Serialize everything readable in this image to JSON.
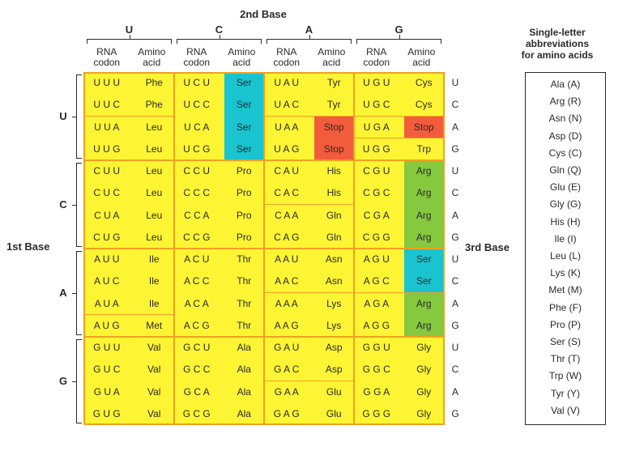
{
  "title": "2nd Base",
  "second_base": [
    "U",
    "C",
    "A",
    "G"
  ],
  "col_headers": [
    {
      "codon": "RNA\ncodon",
      "amino": "Amino\nacid"
    },
    {
      "codon": "RNA\ncodon",
      "amino": "Amino\nacid"
    },
    {
      "codon": "RNA\ncodon",
      "amino": "Amino\nacid"
    },
    {
      "codon": "RNA\ncodon",
      "amino": "Amino\nacid"
    }
  ],
  "first_base_label": "1st Base",
  "third_base_label": "3rd Base",
  "first_base": [
    "U",
    "C",
    "A",
    "G"
  ],
  "third_base": [
    "U",
    "C",
    "A",
    "G",
    "U",
    "C",
    "A",
    "G",
    "U",
    "C",
    "A",
    "G",
    "U",
    "C",
    "A",
    "G"
  ],
  "rows": [
    [
      [
        "U U U",
        "Phe"
      ],
      [
        "U C U",
        "Ser"
      ],
      [
        "U A U",
        "Tyr"
      ],
      [
        "U G U",
        "Cys"
      ]
    ],
    [
      [
        "U U C",
        "Phe"
      ],
      [
        "U C C",
        "Ser"
      ],
      [
        "U A C",
        "Tyr"
      ],
      [
        "U G C",
        "Cys"
      ]
    ],
    [
      [
        "U U A",
        "Leu"
      ],
      [
        "U C A",
        "Ser"
      ],
      [
        "U A A",
        "Stop"
      ],
      [
        "U G A",
        "Stop"
      ]
    ],
    [
      [
        "U U G",
        "Leu"
      ],
      [
        "U C G",
        "Ser"
      ],
      [
        "U A G",
        "Stop"
      ],
      [
        "U G G",
        "Trp"
      ]
    ],
    [
      [
        "C U U",
        "Leu"
      ],
      [
        "C C U",
        "Pro"
      ],
      [
        "C A U",
        "His"
      ],
      [
        "C G U",
        "Arg"
      ]
    ],
    [
      [
        "C U C",
        "Leu"
      ],
      [
        "C C C",
        "Pro"
      ],
      [
        "C A C",
        "His"
      ],
      [
        "C G C",
        "Arg"
      ]
    ],
    [
      [
        "C U A",
        "Leu"
      ],
      [
        "C C A",
        "Pro"
      ],
      [
        "C A A",
        "Gln"
      ],
      [
        "C G A",
        "Arg"
      ]
    ],
    [
      [
        "C U G",
        "Leu"
      ],
      [
        "C C G",
        "Pro"
      ],
      [
        "C A G",
        "Gln"
      ],
      [
        "C G G",
        "Arg"
      ]
    ],
    [
      [
        "A U U",
        "Ile"
      ],
      [
        "A C U",
        "Thr"
      ],
      [
        "A A U",
        "Asn"
      ],
      [
        "A G U",
        "Ser"
      ]
    ],
    [
      [
        "A U C",
        "Ile"
      ],
      [
        "A C C",
        "Thr"
      ],
      [
        "A A C",
        "Asn"
      ],
      [
        "A G C",
        "Ser"
      ]
    ],
    [
      [
        "A U A",
        "Ile"
      ],
      [
        "A C A",
        "Thr"
      ],
      [
        "A A A",
        "Lys"
      ],
      [
        "A G A",
        "Arg"
      ]
    ],
    [
      [
        "A U G",
        "Met"
      ],
      [
        "A C G",
        "Thr"
      ],
      [
        "A A G",
        "Lys"
      ],
      [
        "A G G",
        "Arg"
      ]
    ],
    [
      [
        "G U U",
        "Val"
      ],
      [
        "G C U",
        "Ala"
      ],
      [
        "G A U",
        "Asp"
      ],
      [
        "G G U",
        "Gly"
      ]
    ],
    [
      [
        "G U C",
        "Val"
      ],
      [
        "G C C",
        "Ala"
      ],
      [
        "G A C",
        "Asp"
      ],
      [
        "G G C",
        "Gly"
      ]
    ],
    [
      [
        "G U A",
        "Val"
      ],
      [
        "G C A",
        "Ala"
      ],
      [
        "G A A",
        "Glu"
      ],
      [
        "G G A",
        "Gly"
      ]
    ],
    [
      [
        "G U G",
        "Val"
      ],
      [
        "G C G",
        "Ala"
      ],
      [
        "G A G",
        "Glu"
      ],
      [
        "G G G",
        "Gly"
      ]
    ]
  ],
  "abbr_title": "Single-letter\nabbreviations\nfor amino acids",
  "abbreviations": [
    "Ala (A)",
    "Arg (R)",
    "Asn (N)",
    "Asp (D)",
    "Cys (C)",
    "Gln (Q)",
    "Glu (E)",
    "Gly (G)",
    "His (H)",
    "Ile (I)",
    "Leu (L)",
    "Lys (K)",
    "Met (M)",
    "Phe (F)",
    "Pro (P)",
    "Ser (S)",
    "Thr (T)",
    "Trp (W)",
    "Tyr (Y)",
    "Val (V)"
  ],
  "colors": {
    "table_bg": "#fdf533",
    "separator": "#f0a020",
    "ser": "#19c3cf",
    "stop": "#f25c3c",
    "arg": "#86c83e",
    "text": "#2a2a2a"
  }
}
